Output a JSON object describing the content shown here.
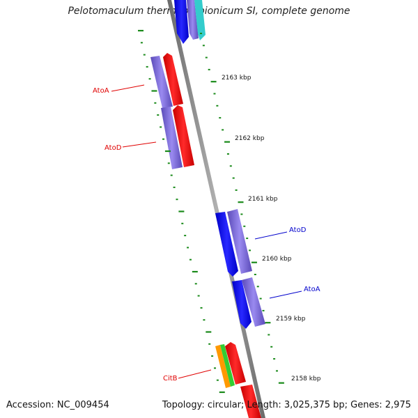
{
  "title": "Pelotomaculum thermopropionicum SI, complete genome",
  "footer": {
    "accession": "Accession: NC_009454",
    "topology": "Topology: circular; Length: 3,025,375 bp; Genes: 2,975"
  },
  "ticks": [
    "2163 kbp",
    "2162 kbp",
    "2161 kbp",
    "2160 kbp",
    "2159 kbp",
    "2158 kbp"
  ],
  "gene_labels": [
    {
      "text": "AtoA",
      "color": "#e00000"
    },
    {
      "text": "AtoD",
      "color": "#e00000"
    },
    {
      "text": "AtoD",
      "color": "#0000cc"
    },
    {
      "text": "AtoA",
      "color": "#0000cc"
    },
    {
      "text": "CitB",
      "color": "#e00000"
    }
  ],
  "colors": {
    "backbone": "#8a8a8a",
    "tick_marks": "#1a8a1a",
    "red_gene": "#ff0000",
    "blue_gene": "#0000ff",
    "purple_gene": "#7b68d6",
    "orange_gene": "#ff9900",
    "green_gene": "#33cc33",
    "cyan_gene": "#33cccc"
  }
}
